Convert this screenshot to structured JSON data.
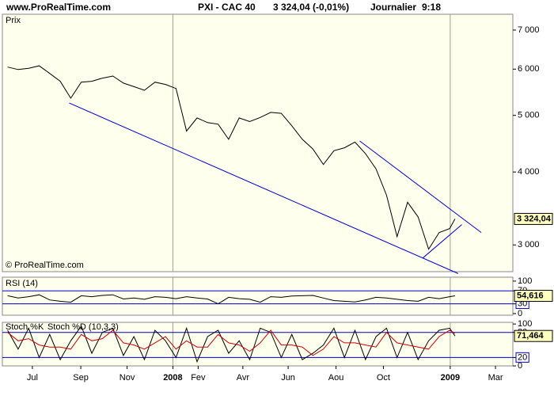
{
  "header": {
    "site": "www.ProRealTime.com",
    "instrument": "PXI - CAC 40",
    "quote": "3 324,04 (-0,01%)",
    "period": "Journalier",
    "time": "9:18"
  },
  "chart_data": [
    {
      "type": "line",
      "title": "Prix",
      "credit": "© ProRealTime.com",
      "log_scale": true,
      "ylim": [
        2700,
        7450
      ],
      "yticks": [
        {
          "value": 3000,
          "label": "3 000"
        },
        {
          "value": 4000,
          "label": "4 000"
        },
        {
          "value": 5000,
          "label": "5 000"
        },
        {
          "value": 6000,
          "label": "6 000"
        },
        {
          "value": 7000,
          "label": "7 000"
        }
      ],
      "x": [
        1,
        3,
        5,
        7,
        9,
        11,
        13,
        15,
        17,
        19,
        21,
        23,
        25,
        27,
        29,
        31,
        33,
        35,
        37,
        39,
        41,
        43,
        45,
        47,
        49,
        51,
        53,
        55,
        57,
        59,
        61,
        63,
        65,
        67,
        69,
        71,
        73,
        75,
        77,
        79,
        81,
        83,
        85,
        86
      ],
      "series": [
        {
          "color": "#000000",
          "values": [
            6050,
            5990,
            6020,
            6080,
            5900,
            5720,
            5350,
            5700,
            5720,
            5790,
            5840,
            5680,
            5600,
            5520,
            5700,
            5650,
            5560,
            4700,
            4950,
            4860,
            4830,
            4550,
            4950,
            4880,
            4960,
            5060,
            5040,
            4800,
            4550,
            4380,
            4120,
            4350,
            4400,
            4500,
            4300,
            4050,
            3650,
            3100,
            3550,
            3350,
            2950,
            3150,
            3200,
            3324.04
          ],
          "value_labels": [
            null,
            null,
            null,
            null,
            null,
            null,
            null,
            null,
            null,
            null,
            null,
            null,
            null,
            null,
            null,
            null,
            null,
            null,
            null,
            null,
            null,
            null,
            null,
            null,
            null,
            null,
            null,
            null,
            null,
            null,
            null,
            null,
            null,
            null,
            null,
            null,
            null,
            null,
            null,
            null,
            null,
            null,
            null,
            "3 324,04"
          ]
        }
      ],
      "trendlines": [
        {
          "color": "#0000cc",
          "x": [
            12.7,
            86.6
          ],
          "y": [
            5250,
            2680
          ]
        },
        {
          "color": "#0000cc",
          "x": [
            67.9,
            91
          ],
          "y": [
            4520,
            3150
          ]
        },
        {
          "color": "#0000cc",
          "x": [
            79.9,
            87.3
          ],
          "y": [
            2850,
            3250
          ]
        }
      ]
    },
    {
      "type": "line",
      "title": "RSI (14)",
      "ylim": [
        -5,
        112
      ],
      "yticks": [
        0,
        30,
        70,
        100
      ],
      "levels": [
        30,
        70
      ],
      "level_color": "#0000cc",
      "x": [
        1,
        3,
        5,
        7,
        9,
        11,
        13,
        15,
        17,
        19,
        21,
        23,
        25,
        27,
        29,
        31,
        33,
        35,
        37,
        39,
        41,
        43,
        45,
        47,
        49,
        51,
        53,
        55,
        57,
        59,
        61,
        63,
        65,
        67,
        69,
        71,
        73,
        75,
        77,
        79,
        81,
        83,
        85,
        86
      ],
      "series": [
        {
          "color": "#000000",
          "values": [
            55,
            48,
            52,
            58,
            42,
            38,
            35,
            55,
            52,
            56,
            58,
            45,
            48,
            44,
            52,
            50,
            46,
            52,
            48,
            45,
            30,
            50,
            46,
            44,
            35,
            52,
            50,
            54,
            55,
            56,
            48,
            40,
            38,
            36,
            42,
            50,
            48,
            44,
            40,
            38,
            50,
            46,
            52,
            54.616
          ],
          "value_labels": [
            null,
            null,
            null,
            null,
            null,
            null,
            null,
            null,
            null,
            null,
            null,
            null,
            null,
            null,
            null,
            null,
            null,
            null,
            null,
            null,
            null,
            null,
            null,
            null,
            null,
            null,
            null,
            null,
            null,
            null,
            null,
            null,
            null,
            null,
            null,
            null,
            null,
            null,
            null,
            null,
            null,
            null,
            null,
            "54,616"
          ]
        }
      ]
    },
    {
      "type": "line",
      "ylim": [
        0,
        104
      ],
      "yticks": [
        0,
        20,
        80,
        100
      ],
      "levels": [
        20,
        80
      ],
      "level_color": "#0000cc",
      "xlim": [
        0,
        97
      ],
      "xticks": [
        {
          "value": 5.7,
          "label": "Jul"
        },
        {
          "value": 14.9,
          "label": "Sep"
        },
        {
          "value": 23.7,
          "label": "Nov"
        },
        {
          "value": 32.4,
          "label": "2008"
        },
        {
          "value": 37.2,
          "label": "Fev"
        },
        {
          "value": 45.7,
          "label": "Avr"
        },
        {
          "value": 54.3,
          "label": "Jun"
        },
        {
          "value": 63.4,
          "label": "Aou"
        },
        {
          "value": 72.4,
          "label": "Oct"
        },
        {
          "value": 85.1,
          "label": "2009"
        },
        {
          "value": 93.7,
          "label": "Mar"
        }
      ],
      "x": [
        1,
        3,
        5,
        7,
        9,
        11,
        13,
        15,
        17,
        19,
        21,
        23,
        25,
        27,
        29,
        31,
        33,
        35,
        37,
        39,
        41,
        43,
        45,
        47,
        49,
        51,
        53,
        55,
        57,
        59,
        61,
        63,
        65,
        67,
        69,
        71,
        73,
        75,
        77,
        79,
        81,
        83,
        85,
        86
      ],
      "series": [
        {
          "name": "Stoch %K",
          "color": "#000000",
          "values": [
            85,
            40,
            90,
            20,
            75,
            15,
            60,
            95,
            30,
            80,
            90,
            25,
            70,
            15,
            85,
            60,
            20,
            90,
            10,
            70,
            85,
            30,
            60,
            15,
            90,
            80,
            20,
            75,
            15,
            30,
            50,
            90,
            20,
            85,
            15,
            70,
            90,
            20,
            80,
            15,
            60,
            85,
            90,
            71.464
          ],
          "value_labels": [
            null,
            null,
            null,
            null,
            null,
            null,
            null,
            null,
            null,
            null,
            null,
            null,
            null,
            null,
            null,
            null,
            null,
            null,
            null,
            null,
            null,
            null,
            null,
            null,
            null,
            null,
            null,
            null,
            null,
            null,
            null,
            null,
            null,
            null,
            null,
            null,
            null,
            null,
            null,
            null,
            null,
            null,
            null,
            "71,464"
          ]
        },
        {
          "name": "Stoch %D (10,3,3)",
          "color": "#cc0000",
          "values": [
            80,
            60,
            65,
            50,
            45,
            45,
            40,
            75,
            60,
            65,
            85,
            55,
            50,
            40,
            55,
            70,
            40,
            60,
            45,
            45,
            75,
            55,
            50,
            35,
            55,
            85,
            50,
            50,
            45,
            25,
            40,
            70,
            55,
            55,
            50,
            45,
            80,
            55,
            50,
            45,
            40,
            70,
            85,
            78
          ]
        }
      ]
    }
  ]
}
